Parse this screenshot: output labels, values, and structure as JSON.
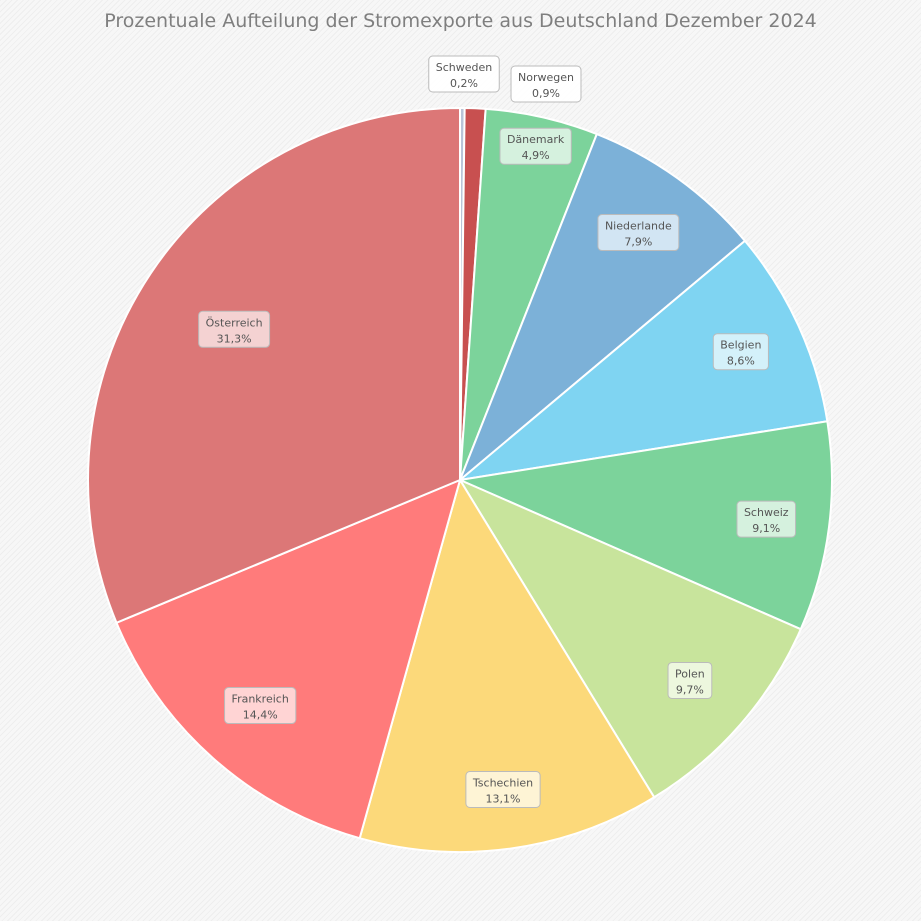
{
  "chart_data": {
    "type": "pie",
    "title": "Prozentuale Aufteilung der Stromexporte aus Deutschland Dezember 2024",
    "categories": [
      "Schweden",
      "Norwegen",
      "Dänemark",
      "Niederlande",
      "Belgien",
      "Schweiz",
      "Polen",
      "Tschechien",
      "Frankreich",
      "Österreich"
    ],
    "values": [
      0.2,
      0.9,
      4.9,
      7.9,
      8.6,
      9.1,
      9.7,
      13.1,
      14.4,
      31.3
    ],
    "value_labels": [
      "0,2%",
      "0,9%",
      "4,9%",
      "7,9%",
      "8,6%",
      "9,1%",
      "9,7%",
      "13,1%",
      "14,4%",
      "31,3%"
    ],
    "colors": [
      "#b9c4d8",
      "#c85050",
      "#7cd39b",
      "#7cb1d8",
      "#7fd4f2",
      "#7cd39b",
      "#c8e49c",
      "#fcd97a",
      "#ff7b7b",
      "#dc7777"
    ],
    "label_fills": [
      "#ffffff",
      "#ffffff",
      "#dff4e6",
      "#dcebf6",
      "#def4fb",
      "#dff4e6",
      "#f1f8e5",
      "#fef6df",
      "#ffdede",
      "#f6dcdc"
    ],
    "start_angle": "top",
    "direction": "clockwise",
    "legend": "none"
  }
}
